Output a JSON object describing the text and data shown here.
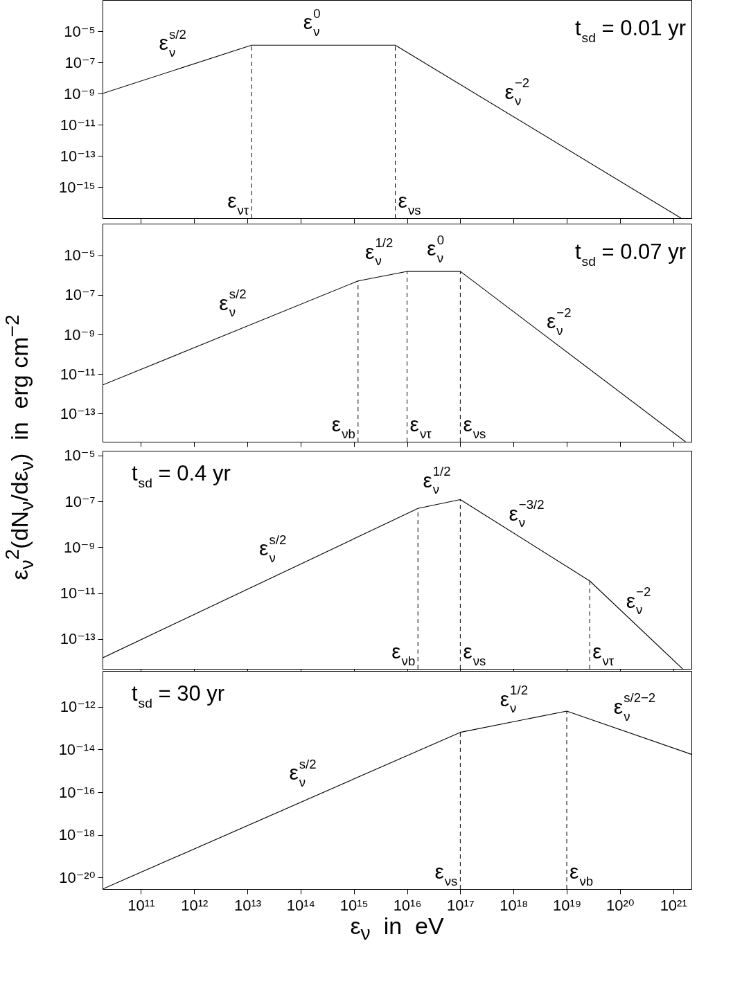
{
  "chart_data": [
    {
      "type": "line",
      "title": "t$_{sd}$ = 0.01 yr",
      "log": "xy",
      "color": "#000000",
      "x": [
        19000000000.0,
        12000000000000.0,
        6000000000000000.0,
        1.4e+21
      ],
      "values": [
        1e-09,
        1.26e-06,
        1.26e-06,
        1e-17
      ],
      "xlim": [
        19000000000.0,
        2.2e+21
      ],
      "ylim": [
        1e-17,
        0.001
      ],
      "xticks": [
        {
          "value": 100000000000.0,
          "label": null
        },
        {
          "value": 1000000000000.0,
          "label": null
        },
        {
          "value": 10000000000000.0,
          "label": null
        },
        {
          "value": 100000000000000.0,
          "label": null
        },
        {
          "value": 1000000000000000.0,
          "label": null
        },
        {
          "value": 1e+16,
          "label": null
        },
        {
          "value": 1e+17,
          "label": null
        },
        {
          "value": 1e+18,
          "label": null
        },
        {
          "value": 1e+19,
          "label": null
        },
        {
          "value": 1e+20,
          "label": null
        },
        {
          "value": 1e+21,
          "label": null
        }
      ],
      "yticks": [
        {
          "value": 1e-05,
          "label": "10⁻⁵"
        },
        {
          "value": 1e-07,
          "label": "10⁻⁷"
        },
        {
          "value": 1e-09,
          "label": "10⁻⁹"
        },
        {
          "value": 1e-11,
          "label": "10⁻¹¹"
        },
        {
          "value": 1e-13,
          "label": "10⁻¹³"
        },
        {
          "value": 1e-15,
          "label": "10⁻¹⁵"
        }
      ],
      "tick_labels": "y",
      "ref_lines": [
        {
          "axis": "x",
          "value": 12000000000000.0,
          "label": "ε$_{ντ}$",
          "line_style": "dashed"
        },
        {
          "axis": "x",
          "value": 6000000000000000.0,
          "label": "ε$_{νs}$",
          "line_style": "dashed"
        }
      ],
      "annotations": [
        "ε$^{s/2}$$_{ν}$",
        "ε$^{0}$$_{ν}$",
        "ε$^{−2}$$_{ν}$"
      ]
    },
    {
      "type": "line",
      "title": "t$_{sd}$ = 0.07 yr",
      "log": "xy",
      "color": "#000000",
      "ylabel": "ε$_{ν}$$^{2}$(dN$_{ν}$/dε$_{ν}$)  in  erg cm$^{−2}$",
      "x": [
        19000000000.0,
        1200000000000000.0,
        1e+16,
        1e+17,
        1.7e+21
      ],
      "values": [
        2.8e-12,
        5.1e-07,
        1.55e-06,
        1.55e-06,
        3.8e-15
      ],
      "xlim": [
        19000000000.0,
        2.2e+21
      ],
      "ylim": [
        3.8e-15,
        0.0004
      ],
      "xticks": [
        {
          "value": 100000000000.0,
          "label": null
        },
        {
          "value": 1000000000000.0,
          "label": null
        },
        {
          "value": 10000000000000.0,
          "label": null
        },
        {
          "value": 100000000000000.0,
          "label": null
        },
        {
          "value": 1000000000000000.0,
          "label": null
        },
        {
          "value": 1e+16,
          "label": null
        },
        {
          "value": 1e+17,
          "label": null
        },
        {
          "value": 1e+18,
          "label": null
        },
        {
          "value": 1e+19,
          "label": null
        },
        {
          "value": 1e+20,
          "label": null
        },
        {
          "value": 1e+21,
          "label": null
        }
      ],
      "yticks": [
        {
          "value": 1e-05,
          "label": "10⁻⁵"
        },
        {
          "value": 1e-07,
          "label": "10⁻⁷"
        },
        {
          "value": 1e-09,
          "label": "10⁻⁹"
        },
        {
          "value": 1e-11,
          "label": "10⁻¹¹"
        },
        {
          "value": 1e-13,
          "label": "10⁻¹³"
        }
      ],
      "tick_labels": "y",
      "ref_lines": [
        {
          "axis": "x",
          "value": 1200000000000000.0,
          "label": "ε$_{νb}$",
          "line_style": "dashed"
        },
        {
          "axis": "x",
          "value": 1e+16,
          "label": "ε$_{ντ}$",
          "line_style": "dashed"
        },
        {
          "axis": "x",
          "value": 1e+17,
          "label": "ε$_{νs}$",
          "line_style": "dashed"
        }
      ],
      "annotations": [
        "ε$^{s/2}$$_{ν}$",
        "ε$^{1/2}$$_{ν}$",
        "ε$^{0}$$_{ν}$",
        "ε$^{−2}$$_{ν}$"
      ]
    },
    {
      "type": "line",
      "title": "t$_{sd}$ = 0.4 yr",
      "log": "xy",
      "color": "#000000",
      "x": [
        19000000000.0,
        1.6e+16,
        1e+17,
        2.7e+19,
        1.5e+21
      ],
      "values": [
        1.5e-14,
        4.9e-08,
        1.2e-07,
        3.4e-11,
        5e-15
      ],
      "xlim": [
        19000000000.0,
        2.2e+21
      ],
      "ylim": [
        5e-15,
        1.6e-05
      ],
      "xticks": [
        {
          "value": 100000000000.0,
          "label": null
        },
        {
          "value": 1000000000000.0,
          "label": null
        },
        {
          "value": 10000000000000.0,
          "label": null
        },
        {
          "value": 100000000000000.0,
          "label": null
        },
        {
          "value": 1000000000000000.0,
          "label": null
        },
        {
          "value": 1e+16,
          "label": null
        },
        {
          "value": 1e+17,
          "label": null
        },
        {
          "value": 1e+18,
          "label": null
        },
        {
          "value": 1e+19,
          "label": null
        },
        {
          "value": 1e+20,
          "label": null
        },
        {
          "value": 1e+21,
          "label": null
        }
      ],
      "yticks": [
        {
          "value": 1e-05,
          "label": "10⁻⁵"
        },
        {
          "value": 1e-07,
          "label": "10⁻⁷"
        },
        {
          "value": 1e-09,
          "label": "10⁻⁹"
        },
        {
          "value": 1e-11,
          "label": "10⁻¹¹"
        },
        {
          "value": 1e-13,
          "label": "10⁻¹³"
        }
      ],
      "tick_labels": "y",
      "ref_lines": [
        {
          "axis": "x",
          "value": 1.6e+16,
          "label": "ε$_{νb}$",
          "line_style": "dashed"
        },
        {
          "axis": "x",
          "value": 1e+17,
          "label": "ε$_{νs}$",
          "line_style": "dashed"
        },
        {
          "axis": "x",
          "value": 2.7e+19,
          "label": "ε$_{ντ}$",
          "line_style": "dashed"
        }
      ],
      "annotations": [
        "ε$^{s/2}$$_{ν}$",
        "ε$^{1/2}$$_{ν}$",
        "ε$^{−3/2}$$_{ν}$",
        "ε$^{−2}$$_{ν}$"
      ]
    },
    {
      "type": "line",
      "title": "t$_{sd}$ = 30 yr",
      "log": "xy",
      "color": "#000000",
      "xlabel": "ε$_{ν}$  in  eV",
      "x": [
        19000000000.0,
        1e+17,
        1e+19,
        2.2e+21
      ],
      "values": [
        2.9e-21,
        6.3e-14,
        6.2e-13,
        5.9e-15
      ],
      "xlim": [
        19000000000.0,
        2.2e+21
      ],
      "ylim": [
        2.9e-21,
        4.7e-11
      ],
      "xticks": [
        {
          "value": 100000000000.0,
          "label": "10¹¹"
        },
        {
          "value": 1000000000000.0,
          "label": "10¹²"
        },
        {
          "value": 10000000000000.0,
          "label": "10¹³"
        },
        {
          "value": 100000000000000.0,
          "label": "10¹⁴"
        },
        {
          "value": 1000000000000000.0,
          "label": "10¹⁵"
        },
        {
          "value": 1e+16,
          "label": "10¹⁶"
        },
        {
          "value": 1e+17,
          "label": "10¹⁷"
        },
        {
          "value": 1e+18,
          "label": "10¹⁸"
        },
        {
          "value": 1e+19,
          "label": "10¹⁹"
        },
        {
          "value": 1e+20,
          "label": "10²⁰"
        },
        {
          "value": 1e+21,
          "label": "10²¹"
        }
      ],
      "yticks": [
        {
          "value": 1e-12,
          "label": "10⁻¹²"
        },
        {
          "value": 1e-14,
          "label": "10⁻¹⁴"
        },
        {
          "value": 1e-16,
          "label": "10⁻¹⁶"
        },
        {
          "value": 1e-18,
          "label": "10⁻¹⁸"
        },
        {
          "value": 1e-20,
          "label": "10⁻²⁰"
        }
      ],
      "ref_lines": [
        {
          "axis": "x",
          "value": 1e+17,
          "label": "ε$_{νs}$",
          "line_style": "dashed"
        },
        {
          "axis": "x",
          "value": 1e+19,
          "label": "ε$_{νb}$",
          "line_style": "dashed"
        }
      ],
      "annotations": [
        "ε$^{s/2}$$_{ν}$",
        "ε$^{1/2}$$_{ν}$",
        "ε$^{s/2−2}$$_{ν}$"
      ]
    }
  ]
}
